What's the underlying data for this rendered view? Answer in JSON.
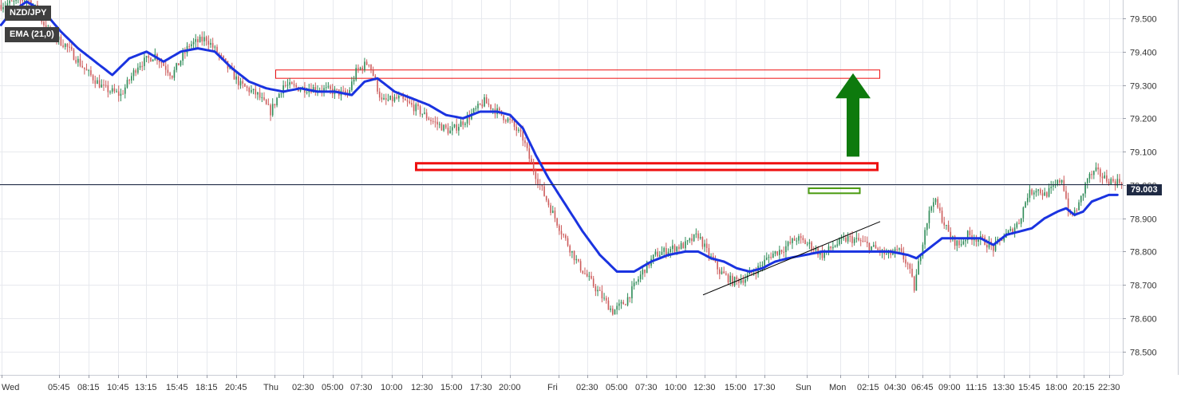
{
  "legend": {
    "symbol": "NZD/JPY",
    "indicator": "EMA (21,0)"
  },
  "current_price_label": "79.003",
  "colors": {
    "bull": "#2e8b57",
    "bear": "#cd5c5c",
    "ema": "#1a33e0",
    "zone": "#ee1111",
    "support_box": "#4a9a10",
    "arrow": "#0d7a0d",
    "price_line": "#1f2a44",
    "grid": "#e7e9ee"
  },
  "chart_data": {
    "type": "candlestick",
    "x_tick_labels": [
      "Wed",
      "05:45",
      "08:15",
      "10:45",
      "13:15",
      "15:45",
      "18:15",
      "20:45",
      "Thu",
      "02:30",
      "05:00",
      "07:30",
      "10:00",
      "12:30",
      "15:00",
      "17:30",
      "20:00",
      "Fri",
      "02:30",
      "05:00",
      "07:30",
      "10:00",
      "12:30",
      "15:00",
      "17:30",
      "Sun",
      "Mon",
      "02:15",
      "04:30",
      "06:45",
      "09:00",
      "11:15",
      "13:30",
      "15:45",
      "18:00",
      "20:15",
      "22:30"
    ],
    "y_tick_labels": [
      "79.500",
      "79.400",
      "79.300",
      "79.200",
      "79.100",
      "79.000",
      "78.900",
      "78.800",
      "78.700",
      "78.600",
      "78.500"
    ],
    "y_ticks": [
      79.5,
      79.4,
      79.3,
      79.2,
      79.1,
      79.0,
      78.9,
      78.8,
      78.7,
      78.6,
      78.5
    ],
    "ylim": [
      78.43,
      79.555
    ],
    "price_anchors": [
      [
        0,
        79.54
      ],
      [
        8,
        79.55
      ],
      [
        12,
        79.56
      ],
      [
        16,
        79.53
      ],
      [
        22,
        79.46
      ],
      [
        30,
        79.42
      ],
      [
        40,
        79.34
      ],
      [
        48,
        79.29
      ],
      [
        56,
        79.27
      ],
      [
        64,
        79.36
      ],
      [
        72,
        79.39
      ],
      [
        80,
        79.33
      ],
      [
        88,
        79.42
      ],
      [
        96,
        79.44
      ],
      [
        104,
        79.37
      ],
      [
        112,
        79.3
      ],
      [
        120,
        79.27
      ],
      [
        126,
        79.22
      ],
      [
        132,
        79.3
      ],
      [
        140,
        79.29
      ],
      [
        148,
        79.29
      ],
      [
        156,
        79.28
      ],
      [
        162,
        79.27
      ],
      [
        166,
        79.34
      ],
      [
        172,
        79.37
      ],
      [
        178,
        79.25
      ],
      [
        186,
        79.26
      ],
      [
        194,
        79.23
      ],
      [
        202,
        79.19
      ],
      [
        210,
        79.16
      ],
      [
        218,
        79.2
      ],
      [
        226,
        79.25
      ],
      [
        232,
        79.22
      ],
      [
        238,
        79.19
      ],
      [
        244,
        79.14
      ],
      [
        248,
        79.06
      ],
      [
        254,
        78.97
      ],
      [
        262,
        78.86
      ],
      [
        270,
        78.76
      ],
      [
        278,
        78.69
      ],
      [
        286,
        78.62
      ],
      [
        292,
        78.65
      ],
      [
        300,
        78.74
      ],
      [
        306,
        78.79
      ],
      [
        314,
        78.81
      ],
      [
        320,
        78.82
      ],
      [
        326,
        78.85
      ],
      [
        330,
        78.8
      ],
      [
        336,
        78.74
      ],
      [
        342,
        78.71
      ],
      [
        348,
        78.72
      ],
      [
        354,
        78.75
      ],
      [
        360,
        78.79
      ],
      [
        366,
        78.81
      ],
      [
        372,
        78.84
      ],
      [
        378,
        78.82
      ],
      [
        384,
        78.79
      ],
      [
        390,
        78.82
      ],
      [
        396,
        78.84
      ],
      [
        402,
        78.83
      ],
      [
        408,
        78.81
      ],
      [
        414,
        78.79
      ],
      [
        420,
        78.8
      ],
      [
        424,
        78.76
      ],
      [
        427,
        78.69
      ],
      [
        432,
        78.87
      ],
      [
        436,
        78.96
      ],
      [
        440,
        78.9
      ],
      [
        444,
        78.84
      ],
      [
        448,
        78.82
      ],
      [
        452,
        78.85
      ],
      [
        456,
        78.84
      ],
      [
        460,
        78.83
      ],
      [
        464,
        78.81
      ],
      [
        468,
        78.84
      ],
      [
        472,
        78.86
      ],
      [
        476,
        78.89
      ],
      [
        480,
        78.97
      ],
      [
        484,
        78.99
      ],
      [
        488,
        78.97
      ],
      [
        492,
        78.99
      ],
      [
        496,
        79.02
      ],
      [
        500,
        78.9
      ],
      [
        504,
        78.94
      ],
      [
        508,
        79.02
      ],
      [
        512,
        79.04
      ],
      [
        516,
        79.02
      ],
      [
        520,
        79.01
      ]
    ],
    "ema_21": [
      [
        0,
        79.48
      ],
      [
        5,
        79.52
      ],
      [
        12,
        79.55
      ],
      [
        20,
        79.52
      ],
      [
        28,
        79.46
      ],
      [
        36,
        79.41
      ],
      [
        44,
        79.37
      ],
      [
        52,
        79.33
      ],
      [
        60,
        79.38
      ],
      [
        68,
        79.4
      ],
      [
        76,
        79.37
      ],
      [
        84,
        79.4
      ],
      [
        92,
        79.41
      ],
      [
        100,
        79.4
      ],
      [
        108,
        79.35
      ],
      [
        116,
        79.31
      ],
      [
        124,
        79.29
      ],
      [
        132,
        79.28
      ],
      [
        140,
        79.29
      ],
      [
        148,
        79.28
      ],
      [
        156,
        79.28
      ],
      [
        164,
        79.27
      ],
      [
        170,
        79.31
      ],
      [
        176,
        79.32
      ],
      [
        184,
        79.28
      ],
      [
        192,
        79.26
      ],
      [
        200,
        79.24
      ],
      [
        208,
        79.21
      ],
      [
        216,
        79.2
      ],
      [
        224,
        79.22
      ],
      [
        232,
        79.22
      ],
      [
        238,
        79.21
      ],
      [
        244,
        79.17
      ],
      [
        250,
        79.09
      ],
      [
        256,
        79.02
      ],
      [
        264,
        78.94
      ],
      [
        272,
        78.86
      ],
      [
        280,
        78.79
      ],
      [
        288,
        78.74
      ],
      [
        296,
        78.74
      ],
      [
        304,
        78.77
      ],
      [
        312,
        78.79
      ],
      [
        320,
        78.8
      ],
      [
        326,
        78.8
      ],
      [
        332,
        78.78
      ],
      [
        338,
        78.77
      ],
      [
        344,
        78.75
      ],
      [
        350,
        78.74
      ],
      [
        356,
        78.75
      ],
      [
        362,
        78.77
      ],
      [
        368,
        78.78
      ],
      [
        376,
        78.79
      ],
      [
        384,
        78.8
      ],
      [
        392,
        78.8
      ],
      [
        400,
        78.8
      ],
      [
        408,
        78.8
      ],
      [
        416,
        78.8
      ],
      [
        424,
        78.79
      ],
      [
        428,
        78.78
      ],
      [
        434,
        78.81
      ],
      [
        440,
        78.84
      ],
      [
        446,
        78.84
      ],
      [
        452,
        78.84
      ],
      [
        458,
        78.84
      ],
      [
        464,
        78.82
      ],
      [
        470,
        78.85
      ],
      [
        476,
        78.86
      ],
      [
        482,
        78.87
      ],
      [
        488,
        78.9
      ],
      [
        494,
        78.92
      ],
      [
        498,
        78.93
      ],
      [
        502,
        78.91
      ],
      [
        506,
        78.92
      ],
      [
        510,
        78.95
      ],
      [
        514,
        78.96
      ],
      [
        518,
        78.97
      ],
      [
        522,
        78.97
      ]
    ],
    "resistance_zone_upper": [
      79.32,
      79.345
    ],
    "resistance_zone_lower": [
      79.045,
      79.065
    ],
    "support_box": [
      78.975,
      78.99
    ],
    "trendline": [
      [
        427,
        78.67
      ],
      [
        522,
        78.89
      ]
    ],
    "current_price": 79.003,
    "annotation": "up-arrow"
  }
}
